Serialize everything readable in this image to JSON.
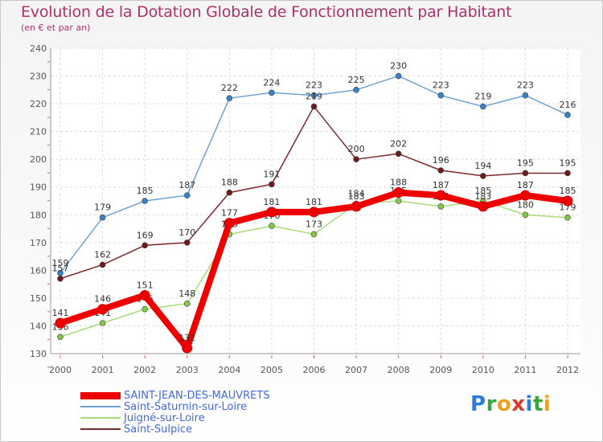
{
  "title": "Evolution de la Dotation Globale de Fonctionnement par Habitant",
  "subtitle": "(en € et par an)",
  "logo_text": "Proxiti",
  "chart_data": {
    "type": "line",
    "title": "Evolution de la Dotation Globale de Fonctionnement par Habitant",
    "ylabel": "(en € et par an)",
    "xlabel": "",
    "ylim": [
      130,
      240
    ],
    "yticks": [
      130,
      140,
      150,
      160,
      170,
      180,
      190,
      200,
      210,
      220,
      230,
      240
    ],
    "grid": true,
    "categories": [
      "2000",
      "2001",
      "2002",
      "2003",
      "2004",
      "2005",
      "2006",
      "2007",
      "2008",
      "2009",
      "2010",
      "2011",
      "2012"
    ],
    "series": [
      {
        "name": "Saint-Saturnin-sur-Loire",
        "color": "#6fa2d4",
        "marker": "#3a82c8",
        "values": [
          159,
          179,
          185,
          187,
          222,
          224,
          223,
          225,
          230,
          223,
          219,
          223,
          216
        ]
      },
      {
        "name": "Saint-Sulpice",
        "color": "#7a2a2a",
        "marker": "#6e1a1a",
        "values": [
          157,
          162,
          169,
          170,
          188,
          191,
          219,
          200,
          202,
          196,
          194,
          195,
          195
        ]
      },
      {
        "name": "Juigné-sur-Loire",
        "color": "#a8dc78",
        "marker": "#82c846",
        "values": [
          136,
          141,
          146,
          148,
          173,
          176,
          173,
          184,
          185,
          183,
          185,
          180,
          179
        ]
      },
      {
        "name": "SAINT-JEAN-DES-MAUVRETS",
        "color": "#ee0000",
        "marker": "#ee0000",
        "values": [
          141,
          146,
          151,
          132,
          177,
          181,
          181,
          183,
          188,
          187,
          183,
          187,
          185
        ]
      }
    ],
    "legend_order": [
      "SAINT-JEAN-DES-MAUVRETS",
      "Saint-Saturnin-sur-Loire",
      "Juigné-sur-Loire",
      "Saint-Sulpice"
    ]
  }
}
